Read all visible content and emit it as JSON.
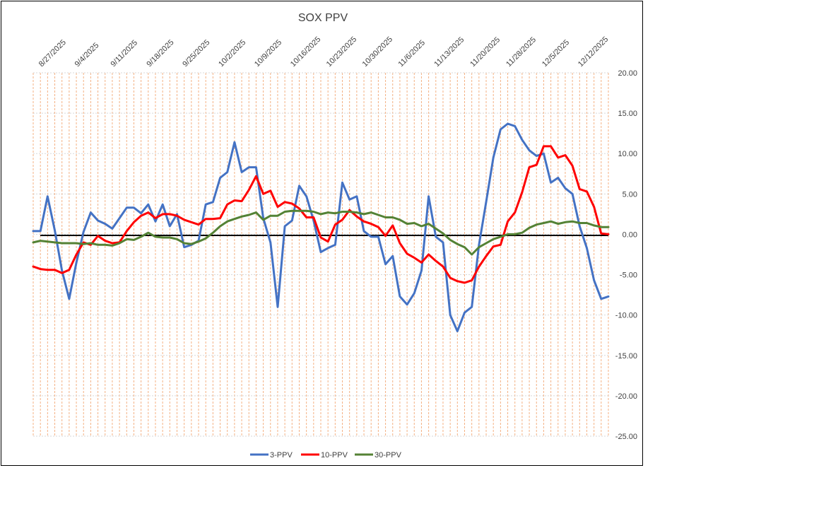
{
  "chart_data": {
    "type": "line",
    "title": "SOX PPV",
    "xlabel": "",
    "ylabel": "",
    "ylim": [
      -25,
      20
    ],
    "yticks": [
      "20.00",
      "15.00",
      "10.00",
      "5.00",
      "0.00",
      "-5.00",
      "-10.00",
      "-15.00",
      "-20.00",
      "-25.00"
    ],
    "ytick_values": [
      20,
      15,
      10,
      5,
      0,
      -5,
      -10,
      -15,
      -20,
      -25
    ],
    "x_tick_labels": [
      "8/27/2025",
      "9/4/2025",
      "9/11/2025",
      "9/18/2025",
      "9/25/2025",
      "10/2/2025",
      "10/9/2025",
      "10/16/2025",
      "10/23/2025",
      "10/30/2025",
      "11/6/2025",
      "11/13/2025",
      "11/20/2025",
      "11/28/2025",
      "12/5/2025",
      "12/12/2025"
    ],
    "x_tick_indices": [
      1,
      6,
      11,
      16,
      21,
      26,
      31,
      36,
      41,
      46,
      51,
      56,
      61,
      66,
      71,
      76
    ],
    "n_points": 81,
    "grid": "vertical-orange-dashed",
    "legend_position": "bottom",
    "zero_line": 0,
    "colors": {
      "grid": "#f4b183",
      "hgrid": "#d9d9d9",
      "zero": "#000000"
    },
    "series": [
      {
        "name": "3-PPV",
        "color": "#4472c4",
        "values": [
          0.4,
          0.4,
          4.7,
          0.5,
          -4.5,
          -8.0,
          -3.5,
          0.3,
          2.7,
          1.7,
          1.3,
          0.7,
          2.0,
          3.3,
          3.3,
          2.6,
          3.7,
          1.6,
          3.7,
          1.0,
          2.5,
          -1.6,
          -1.3,
          -0.8,
          3.7,
          4.0,
          7.0,
          7.7,
          11.4,
          7.7,
          8.3,
          8.3,
          2.0,
          -1.0,
          -9.0,
          1.0,
          1.7,
          6.0,
          4.7,
          1.7,
          -2.2,
          -1.7,
          -1.3,
          6.4,
          4.3,
          4.7,
          0.4,
          -0.3,
          -0.3,
          -3.7,
          -2.7,
          -7.7,
          -8.7,
          -7.3,
          -4.5,
          4.7,
          -0.3,
          -1.0,
          -10.0,
          -12.0,
          -9.7,
          -9.0,
          -1.3,
          4.0,
          9.5,
          13.0,
          13.7,
          13.4,
          11.7,
          10.4,
          9.7,
          10.0,
          6.4,
          7.0,
          5.7,
          5.0,
          1.0,
          -1.7,
          -5.7,
          -8.0,
          -7.7
        ]
      },
      {
        "name": "10-PPV",
        "color": "#ff0000",
        "values": [
          -4.0,
          -4.3,
          -4.4,
          -4.4,
          -4.8,
          -4.4,
          -2.5,
          -1.0,
          -1.3,
          -0.2,
          -0.8,
          -1.1,
          -1.0,
          0.4,
          1.5,
          2.3,
          2.7,
          2.0,
          2.5,
          2.5,
          2.3,
          1.8,
          1.5,
          1.2,
          1.9,
          1.9,
          2.0,
          3.7,
          4.2,
          4.1,
          5.5,
          7.2,
          5.0,
          5.4,
          3.4,
          4.0,
          3.8,
          3.2,
          2.1,
          2.1,
          -0.4,
          -0.9,
          1.2,
          1.8,
          3.0,
          2.2,
          1.6,
          1.3,
          0.9,
          -0.2,
          1.1,
          -1.1,
          -2.4,
          -2.9,
          -3.5,
          -2.5,
          -3.3,
          -4.0,
          -5.4,
          -5.8,
          -6.0,
          -5.7,
          -4.0,
          -2.7,
          -1.5,
          -1.3,
          1.6,
          2.7,
          5.2,
          8.3,
          8.6,
          10.9,
          10.9,
          9.5,
          9.8,
          8.5,
          5.6,
          5.3,
          3.4,
          0.1,
          0.0
        ]
      },
      {
        "name": "30-PPV",
        "color": "#548235",
        "values": [
          -1.0,
          -0.8,
          -0.9,
          -1.0,
          -1.1,
          -1.1,
          -1.1,
          -1.2,
          -1.1,
          -1.3,
          -1.3,
          -1.4,
          -1.1,
          -0.6,
          -0.7,
          -0.3,
          0.2,
          -0.3,
          -0.4,
          -0.4,
          -0.6,
          -1.1,
          -1.2,
          -0.9,
          -0.5,
          0.2,
          1.0,
          1.6,
          1.9,
          2.2,
          2.4,
          2.7,
          1.8,
          2.3,
          2.3,
          2.8,
          2.9,
          2.9,
          2.9,
          2.8,
          2.5,
          2.7,
          2.6,
          2.8,
          2.8,
          2.7,
          2.5,
          2.7,
          2.4,
          2.1,
          2.1,
          1.8,
          1.3,
          1.4,
          1.0,
          1.3,
          0.7,
          0.1,
          -0.7,
          -1.2,
          -1.6,
          -2.5,
          -1.6,
          -1.1,
          -0.6,
          -0.3,
          0.0,
          0.0,
          0.2,
          0.8,
          1.2,
          1.4,
          1.6,
          1.3,
          1.5,
          1.6,
          1.4,
          1.4,
          1.1,
          0.9,
          0.9
        ]
      }
    ]
  }
}
